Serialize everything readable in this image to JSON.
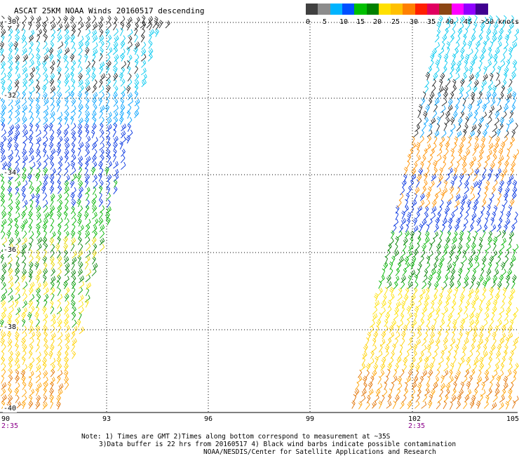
{
  "title": "ASCAT 25KM NOAA Winds 20160517 descending",
  "scale": {
    "labels": [
      "0",
      "5",
      "10",
      "15",
      "20",
      "25",
      "30",
      "35",
      "40",
      "45",
      ">50 knots"
    ],
    "colors": [
      "#404040",
      "#8c8c8c",
      "#00b4ff",
      "#0050ff",
      "#00c000",
      "#008000",
      "#ffe000",
      "#ffc000",
      "#ff8000",
      "#ff2000",
      "#e00060",
      "#8b4513",
      "#ff00ff",
      "#9000ff",
      "#400090"
    ]
  },
  "map": {
    "latitudes": [
      "-30",
      "-32",
      "-34",
      "-36",
      "-38",
      "-40"
    ],
    "longitudes": [
      "90",
      "93",
      "96",
      "99",
      "102",
      "105"
    ],
    "swath_times": [
      "2:35",
      "2:35"
    ]
  },
  "notes": {
    "line1": "Note: 1) Times are GMT 2)Times along bottom correspond to measurement at ~35S",
    "line2": "3)Data buffer is 22 hrs from 20160517 4) Black wind barbs indicate possible contamination",
    "line3": "NOAA/NESDIS/Center for Satellite Applications and Research"
  }
}
